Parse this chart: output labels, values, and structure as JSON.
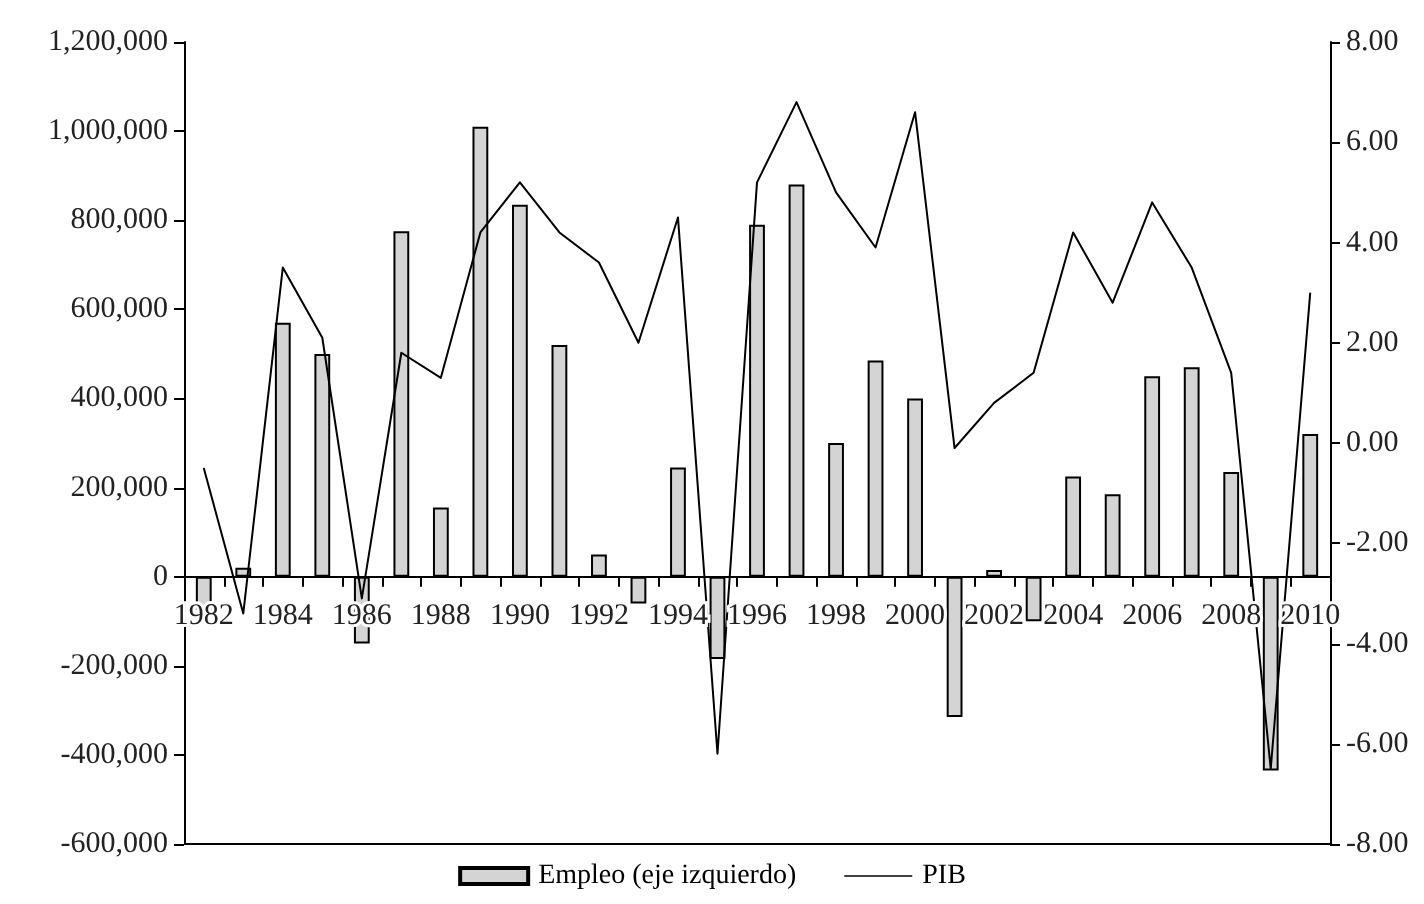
{
  "chart_data": {
    "type": "bar",
    "categories": [
      "1982",
      null,
      "1984",
      null,
      "1986",
      null,
      "1988",
      null,
      "1990",
      null,
      "1992",
      null,
      "1994",
      null,
      "1996",
      null,
      "1998",
      null,
      "2000",
      null,
      "2002",
      null,
      "2004",
      null,
      "2006",
      null,
      "2008",
      null,
      "2010"
    ],
    "series": [
      {
        "name": "Empleo (eje izquierdo)",
        "color": "#d4d4d4",
        "values": [
          -75000,
          20000,
          570000,
          500000,
          -150000,
          775000,
          155000,
          1010000,
          835000,
          520000,
          50000,
          -60000,
          245000,
          -185000,
          790000,
          880000,
          300000,
          485000,
          400000,
          -315000,
          15000,
          -100000,
          225000,
          185000,
          450000,
          470000,
          235000,
          -435000,
          320000
        ]
      },
      {
        "name": "PIB",
        "type": "line",
        "axis": "y2",
        "color": "#000000",
        "values": [
          -0.5,
          -3.4,
          3.5,
          2.1,
          -3.1,
          1.8,
          1.3,
          4.2,
          5.2,
          4.2,
          3.6,
          2.0,
          4.5,
          -6.2,
          5.2,
          6.8,
          5.0,
          3.9,
          6.6,
          -0.1,
          0.8,
          1.4,
          4.2,
          2.8,
          4.8,
          3.5,
          1.4,
          -6.5,
          3.0
        ]
      }
    ],
    "ylim": [
      -600000,
      1200000
    ],
    "yticks": [
      {
        "value": -600000,
        "label": "-600,000"
      },
      {
        "value": -400000,
        "label": "-400,000"
      },
      {
        "value": -200000,
        "label": "-200,000"
      },
      {
        "value": 0,
        "label": "0"
      },
      {
        "value": 200000,
        "label": "200,000"
      },
      {
        "value": 400000,
        "label": "400,000"
      },
      {
        "value": 600000,
        "label": "600,000"
      },
      {
        "value": 800000,
        "label": "800,000"
      },
      {
        "value": 1000000,
        "label": "1,000,000"
      },
      {
        "value": 1200000,
        "label": "1,200,000"
      }
    ],
    "y2lim": [
      -8,
      8
    ],
    "y2ticks": [
      {
        "value": -8,
        "label": "-8.00"
      },
      {
        "value": -6,
        "label": "-6.00"
      },
      {
        "value": -4,
        "label": "-4.00"
      },
      {
        "value": -2,
        "label": "-2.00"
      },
      {
        "value": 0,
        "label": "0.00"
      },
      {
        "value": 2,
        "label": "2.00"
      },
      {
        "value": 4,
        "label": "4.00"
      },
      {
        "value": 6,
        "label": "6.00"
      },
      {
        "value": 8,
        "label": "8.00"
      }
    ],
    "grid": false,
    "legend": "bottom",
    "marker": "none",
    "line_style": "solid"
  }
}
